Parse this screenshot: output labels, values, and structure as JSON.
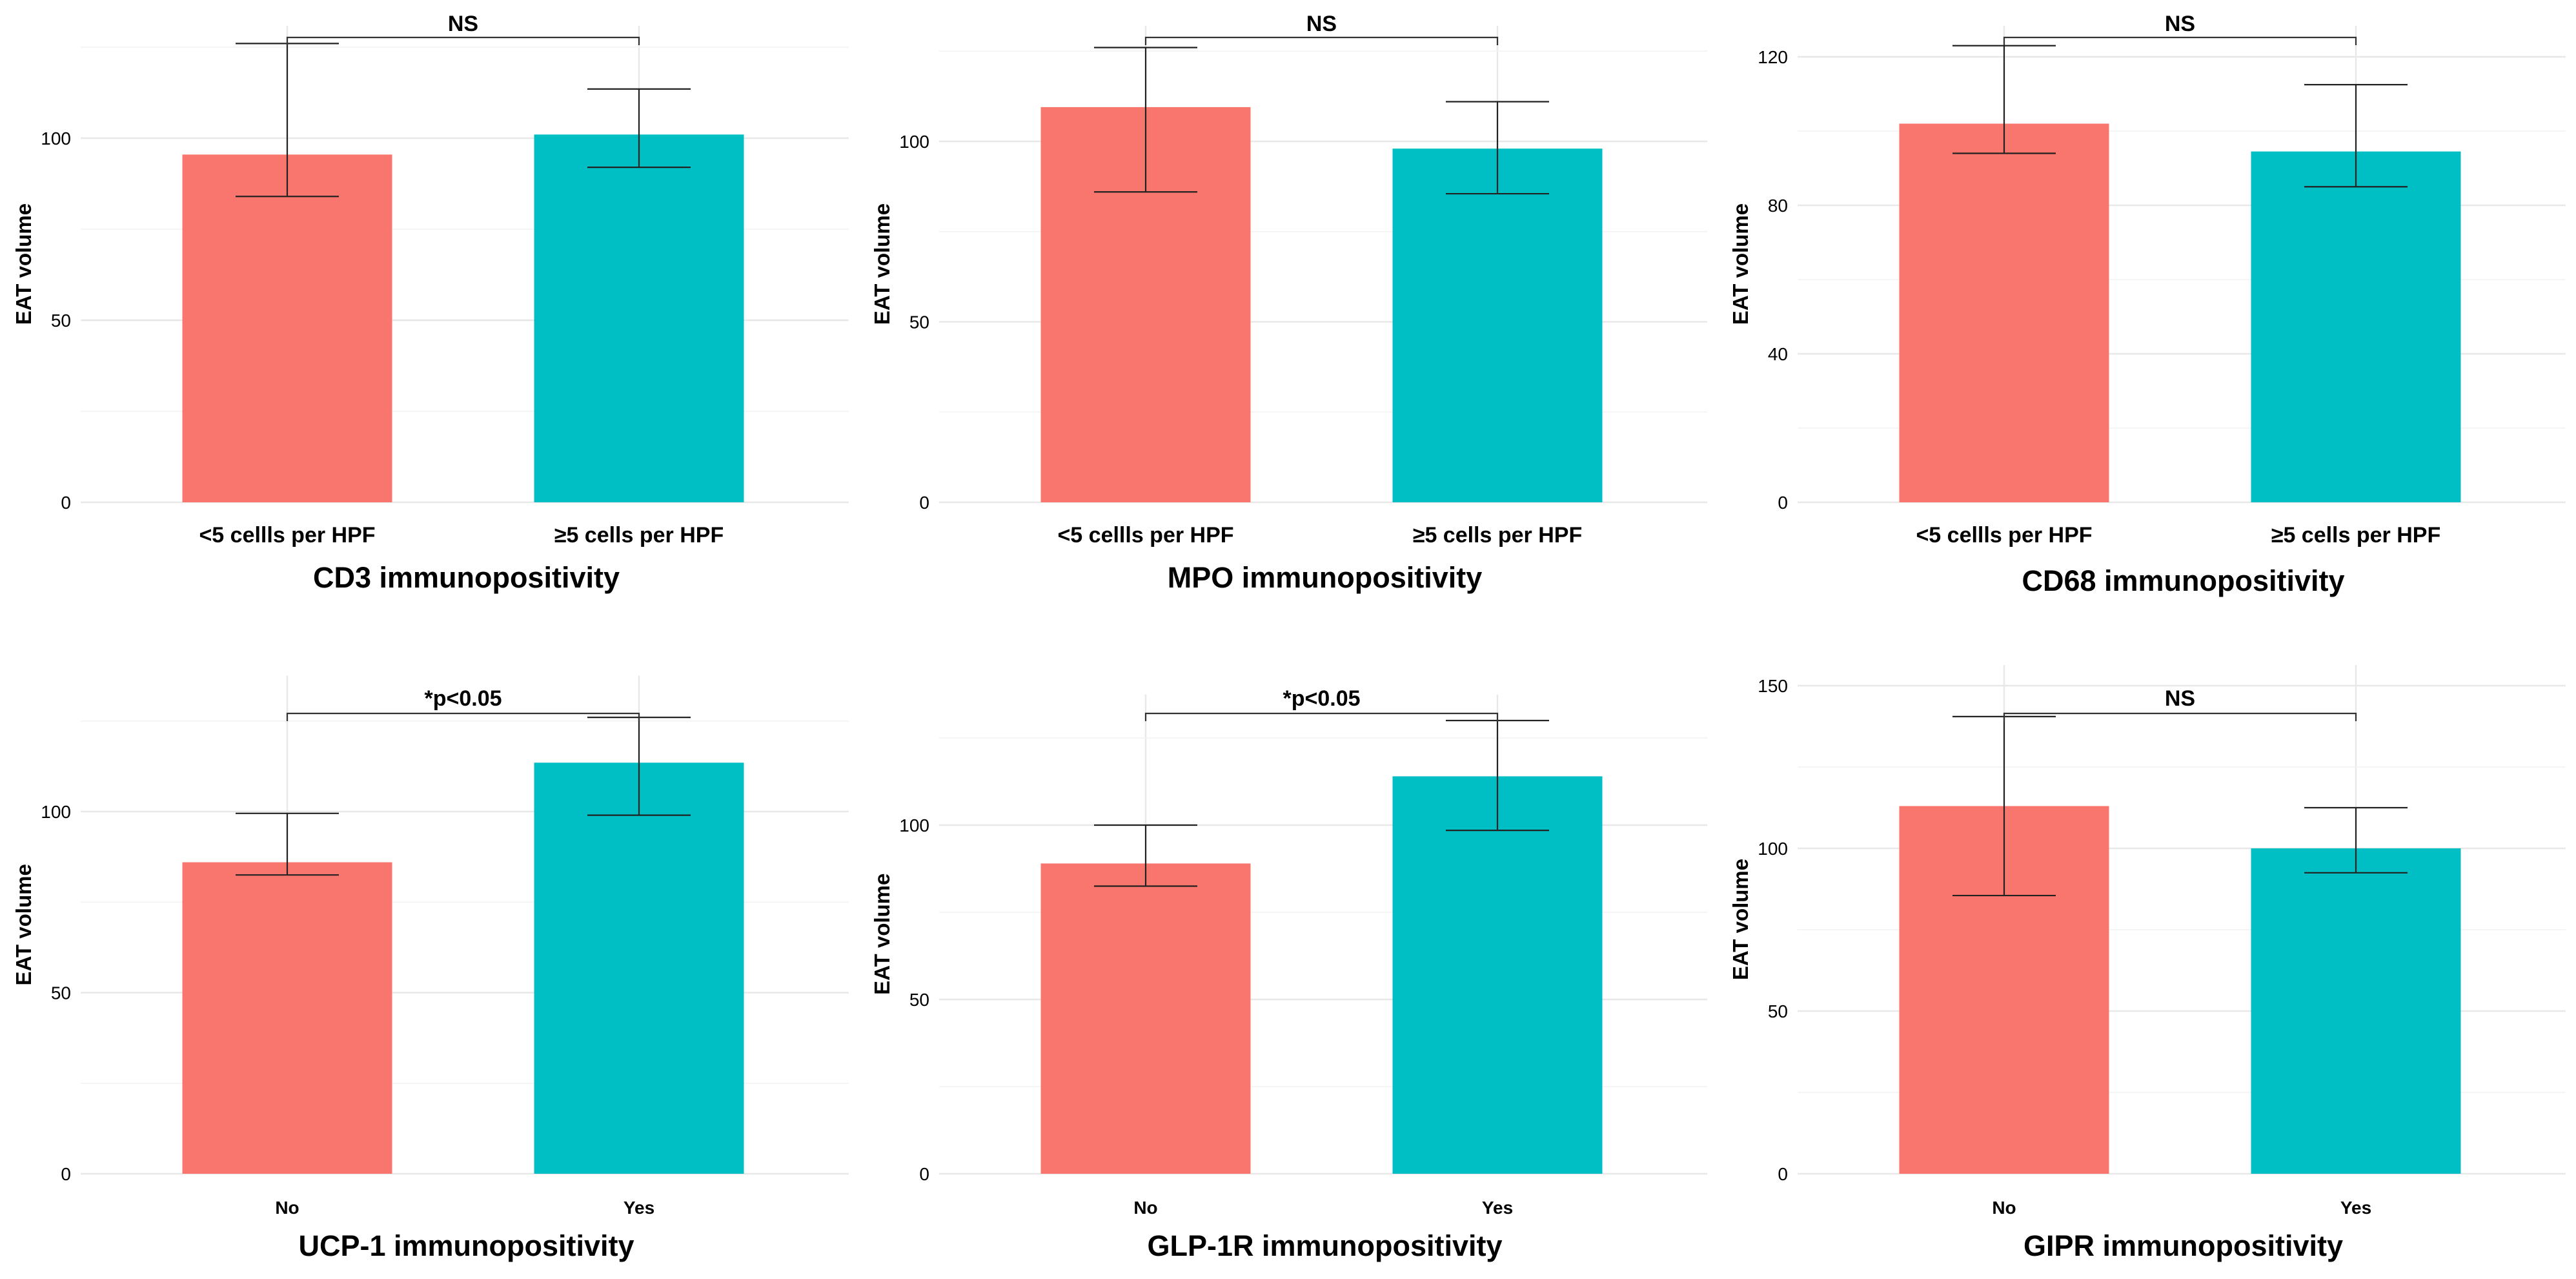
{
  "chart_data": [
    {
      "type": "bar",
      "categories": [
        "<5 cellls per HPF",
        "≥5 cells per HPF"
      ],
      "values": [
        95.5,
        101
      ],
      "error_low": [
        84,
        92
      ],
      "error_high": [
        126,
        113.5
      ],
      "colors": [
        "#F8766D",
        "#00BFC4"
      ],
      "ylabel": "EAT volume",
      "xlabel": "CD3 immunopositivity",
      "ylim": [
        0,
        125
      ],
      "yticks": [
        0,
        50,
        100
      ],
      "significance": "NS"
    },
    {
      "type": "bar",
      "categories": [
        "<5 cellls per HPF",
        "≥5 cells per HPF"
      ],
      "values": [
        109.5,
        98
      ],
      "error_low": [
        86,
        85.5
      ],
      "error_high": [
        126,
        111
      ],
      "colors": [
        "#F8766D",
        "#00BFC4"
      ],
      "ylabel": "EAT volume",
      "xlabel": "MPO immunopositivity",
      "ylim": [
        0,
        125
      ],
      "yticks": [
        0,
        50,
        100
      ],
      "significance": "NS"
    },
    {
      "type": "bar",
      "categories": [
        "<5 cellls per HPF",
        "≥5 cells per HPF"
      ],
      "values": [
        102,
        94.5
      ],
      "error_low": [
        94,
        85
      ],
      "error_high": [
        123,
        112.5
      ],
      "colors": [
        "#F8766D",
        "#00BFC4"
      ],
      "ylabel": "EAT volume",
      "xlabel": "CD68 immunopositivity",
      "ylim": [
        0,
        120
      ],
      "yticks": [
        0,
        40,
        80,
        120
      ],
      "significance": "NS"
    },
    {
      "type": "bar",
      "categories": [
        "No",
        "Yes"
      ],
      "values": [
        86,
        113.5
      ],
      "error_low": [
        82.5,
        99
      ],
      "error_high": [
        99.5,
        126
      ],
      "colors": [
        "#F8766D",
        "#00BFC4"
      ],
      "ylabel": "EAT volume",
      "xlabel": "UCP-1 immunopositivity",
      "ylim": [
        0,
        125
      ],
      "yticks": [
        0,
        50,
        100
      ],
      "significance": "*p<0.05"
    },
    {
      "type": "bar",
      "categories": [
        "No",
        "Yes"
      ],
      "values": [
        89,
        114
      ],
      "error_low": [
        82.5,
        98.5
      ],
      "error_high": [
        100,
        130
      ],
      "colors": [
        "#F8766D",
        "#00BFC4"
      ],
      "ylabel": "EAT volume",
      "xlabel": "GLP-1R immunopositivity",
      "ylim": [
        0,
        125
      ],
      "yticks": [
        0,
        50,
        100
      ],
      "significance": "*p<0.05"
    },
    {
      "type": "bar",
      "categories": [
        "No",
        "Yes"
      ],
      "values": [
        113,
        100
      ],
      "error_low": [
        85.5,
        92.5
      ],
      "error_high": [
        140.5,
        112.5
      ],
      "colors": [
        "#F8766D",
        "#00BFC4"
      ],
      "ylabel": "EAT volume",
      "xlabel": "GIPR immunopositivity",
      "ylim": [
        0,
        150
      ],
      "yticks": [
        0,
        50,
        100,
        150
      ],
      "significance": "NS"
    }
  ]
}
